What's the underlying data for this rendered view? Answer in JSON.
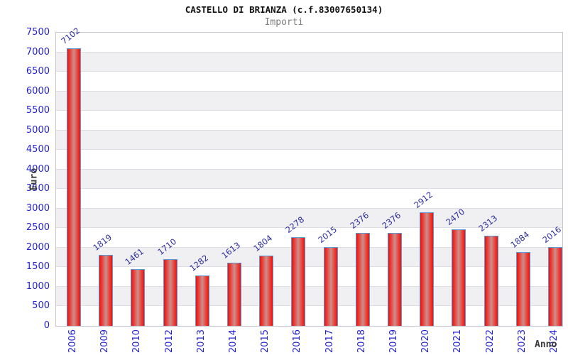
{
  "header": {
    "title": "CASTELLO DI BRIANZA (c.f.83007650134)",
    "subtitle": "Importi"
  },
  "chart_data": {
    "type": "bar",
    "title": "CASTELLO DI BRIANZA (c.f.83007650134)",
    "subtitle": "Importi",
    "xlabel": "Anno",
    "ylabel": "Euro",
    "categories": [
      "2006",
      "2009",
      "2010",
      "2012",
      "2013",
      "2014",
      "2015",
      "2016",
      "2017",
      "2018",
      "2019",
      "2020",
      "2021",
      "2022",
      "2023",
      "2024"
    ],
    "values": [
      7102,
      1819,
      1461,
      1710,
      1282,
      1613,
      1804,
      2278,
      2015,
      2376,
      2376,
      2912,
      2470,
      2313,
      1884,
      2016
    ],
    "ylim": [
      0,
      7500
    ],
    "ytick_step": 500,
    "yticks": [
      7500,
      7000,
      6500,
      6000,
      5500,
      5000,
      4500,
      4000,
      3500,
      3000,
      2500,
      2000,
      1500,
      1000,
      500,
      0
    ],
    "grid": "horizontal-bands",
    "legend": "none",
    "colors": {
      "bar_edge_red": "#ee1111",
      "bar_mid_red": "#cc8f8f",
      "bar_border_blue": "#5b9bd5",
      "tick_label_blue": "#2323cd",
      "value_label_navy": "#2c2c9c",
      "band_gray": "#f0f0f3",
      "gridline_gray": "#dcdce2",
      "plot_border_gray": "#c6c6cf",
      "title_black": "#111111",
      "subtitle_gray": "#7d7d7d",
      "axis_title_gray": "#3c3c3c"
    }
  }
}
